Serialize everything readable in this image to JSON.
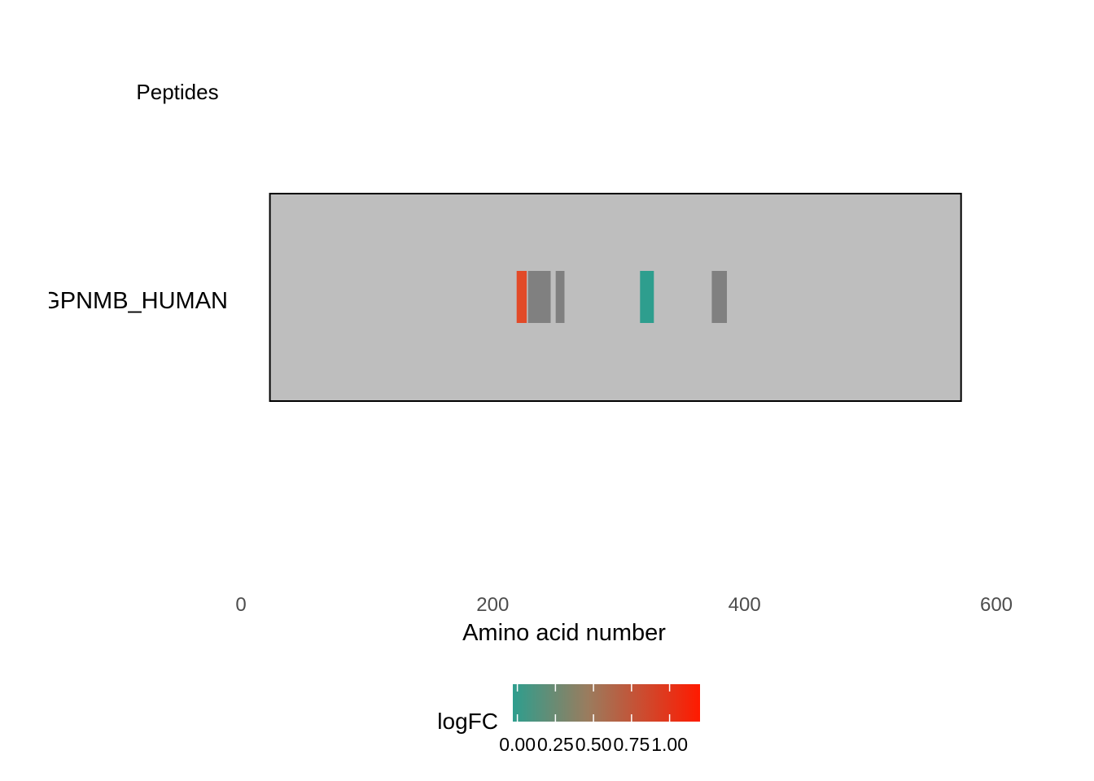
{
  "chart_data": {
    "type": "bar",
    "title": "",
    "track_label": "Peptides",
    "xlabel": "Amino acid number",
    "ylabel": "",
    "xlim": [
      0,
      600
    ],
    "x_ticks": [
      0,
      200,
      400,
      600
    ],
    "x_tick_labels": [
      "0",
      "200",
      "400",
      "600"
    ],
    "proteins": [
      {
        "name": "GPNMB_HUMAN",
        "start": 23,
        "end": 572
      }
    ],
    "peptides": [
      {
        "protein": "GPNMB_HUMAN",
        "start": 219,
        "end": 227,
        "logFC": 0.85,
        "color": "#E24A28"
      },
      {
        "protein": "GPNMB_HUMAN",
        "start": 228,
        "end": 246,
        "logFC": null,
        "color": "#808080"
      },
      {
        "protein": "GPNMB_HUMAN",
        "start": 250,
        "end": 257,
        "logFC": null,
        "color": "#808080"
      },
      {
        "protein": "GPNMB_HUMAN",
        "start": 317,
        "end": 328,
        "logFC": 0.0,
        "color": "#2E9E8E"
      },
      {
        "protein": "GPNMB_HUMAN",
        "start": 374,
        "end": 386,
        "logFC": null,
        "color": "#808080"
      }
    ],
    "protein_fill": "#BEBEBE",
    "protein_border": "#000000",
    "missing_color": "#808080",
    "legend": {
      "title": "logFC",
      "position": "bottom",
      "low_color": "#2E9E8E",
      "high_color": "#FF1A00",
      "min": -0.03,
      "max": 1.2,
      "ticks": [
        0.0,
        0.25,
        0.5,
        0.75,
        1.0
      ],
      "tick_labels": [
        "0.00",
        "0.25",
        "0.50",
        "0.75",
        "1.00"
      ]
    },
    "grid": false
  }
}
